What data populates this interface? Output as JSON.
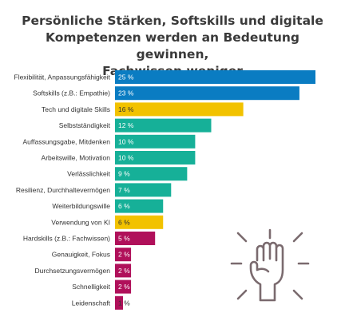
{
  "title_lines": [
    "Persönliche Stärken, Softskills und digitale",
    "Kompetenzen werden an Bedeutung gewinnen,",
    "Fachwissen weniger"
  ],
  "colors": {
    "blue": "#0a7cc2",
    "yellow": "#f2c200",
    "teal": "#16b098",
    "magenta": "#b0105a",
    "icon": "#7a6a6e"
  },
  "icon": "raised-fist-icon",
  "chart_data": {
    "type": "bar",
    "orientation": "horizontal",
    "title": "Persönliche Stärken, Softskills und digitale Kompetenzen werden an Bedeutung gewinnen, Fachwissen weniger",
    "xlabel": "",
    "ylabel": "",
    "xlim": [
      0,
      25
    ],
    "grid": false,
    "legend": "none",
    "value_suffix": " %",
    "categories": [
      "Flexibilität, Anpassungsfähigkeit",
      "Softskills (z.B.: Empathie)",
      "Tech und digitale Skills",
      "Selbstständigkeit",
      "Auffassungsgabe, Mitdenken",
      "Arbeitswille, Motivation",
      "Verlässlichkeit",
      "Resilienz, Durchhaltevermögen",
      "Weiterbildungswille",
      "Verwendung von KI",
      "Hardskills (z.B.: Fachwissen)",
      "Genauigkeit, Fokus",
      "Durchsetzungsvermögen",
      "Schnelligkeit",
      "Leidenschaft"
    ],
    "values": [
      25,
      23,
      16,
      12,
      10,
      10,
      9,
      7,
      6,
      6,
      5,
      2,
      2,
      2,
      1
    ],
    "value_labels": [
      "25 %",
      "23 %",
      "16 %",
      "12 %",
      "10 %",
      "10 %",
      "9 %",
      "7 %",
      "6 %",
      "6 %",
      "5 %",
      "2 %",
      "2 %",
      "2 %",
      "1 %"
    ],
    "bar_colors": [
      "#0a7cc2",
      "#0a7cc2",
      "#f2c200",
      "#16b098",
      "#16b098",
      "#16b098",
      "#16b098",
      "#16b098",
      "#16b098",
      "#f2c200",
      "#b0105a",
      "#b0105a",
      "#b0105a",
      "#b0105a",
      "#b0105a"
    ],
    "dark_value_label_indices": [
      2,
      9,
      14
    ]
  }
}
